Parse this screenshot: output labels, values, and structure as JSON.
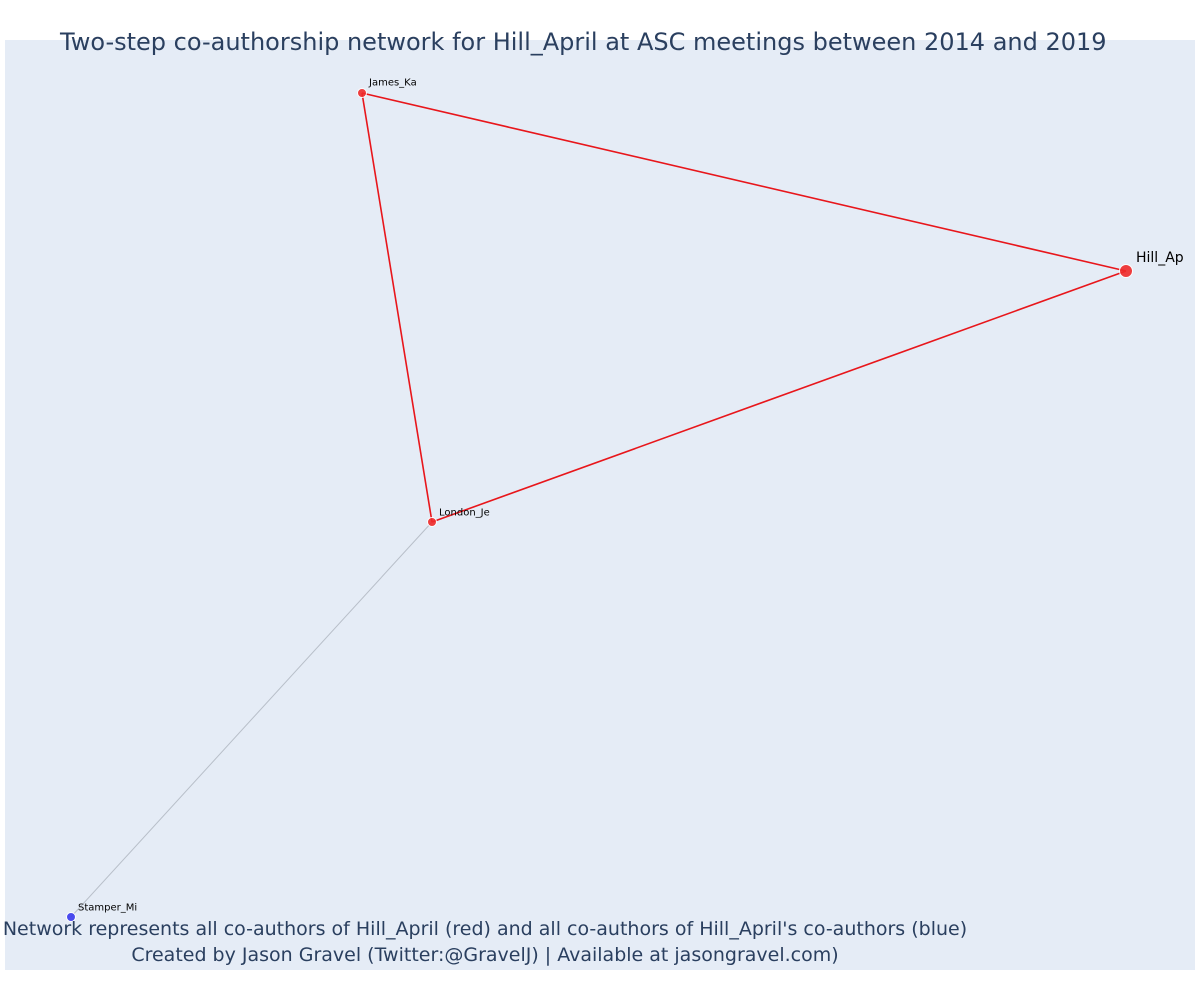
{
  "title": "Two-step co-authorship network for Hill_April at ASC meetings between 2014 and 2019",
  "caption": {
    "line1": "Network represents all co-authors of Hill_April (red) and all co-authors of Hill_April's co-authors (blue)",
    "line2": "Created by Jason Gravel (Twitter:@GravelJ) | Available at jasongravel.com)"
  },
  "colors": {
    "background": "#e5ecf6",
    "first_degree": "#ef2b2b",
    "second_degree": "#3a3aee",
    "first_degree_edge": "#e8161b",
    "second_degree_edge": "#b8bfc9",
    "text": "#2a3f5f"
  },
  "nodes": [
    {
      "id": "hill",
      "label": "Hill_Ap",
      "group": "ego"
    },
    {
      "id": "james",
      "label": "James_Ka",
      "group": "first_degree"
    },
    {
      "id": "london",
      "label": "London_Je",
      "group": "first_degree"
    },
    {
      "id": "stamper",
      "label": "Stamper_Mi",
      "group": "second_degree"
    }
  ],
  "edges": [
    {
      "source": "james",
      "target": "hill",
      "type": "first_degree"
    },
    {
      "source": "london",
      "target": "hill",
      "type": "first_degree"
    },
    {
      "source": "james",
      "target": "london",
      "type": "first_degree"
    },
    {
      "source": "london",
      "target": "stamper",
      "type": "second_degree"
    }
  ]
}
